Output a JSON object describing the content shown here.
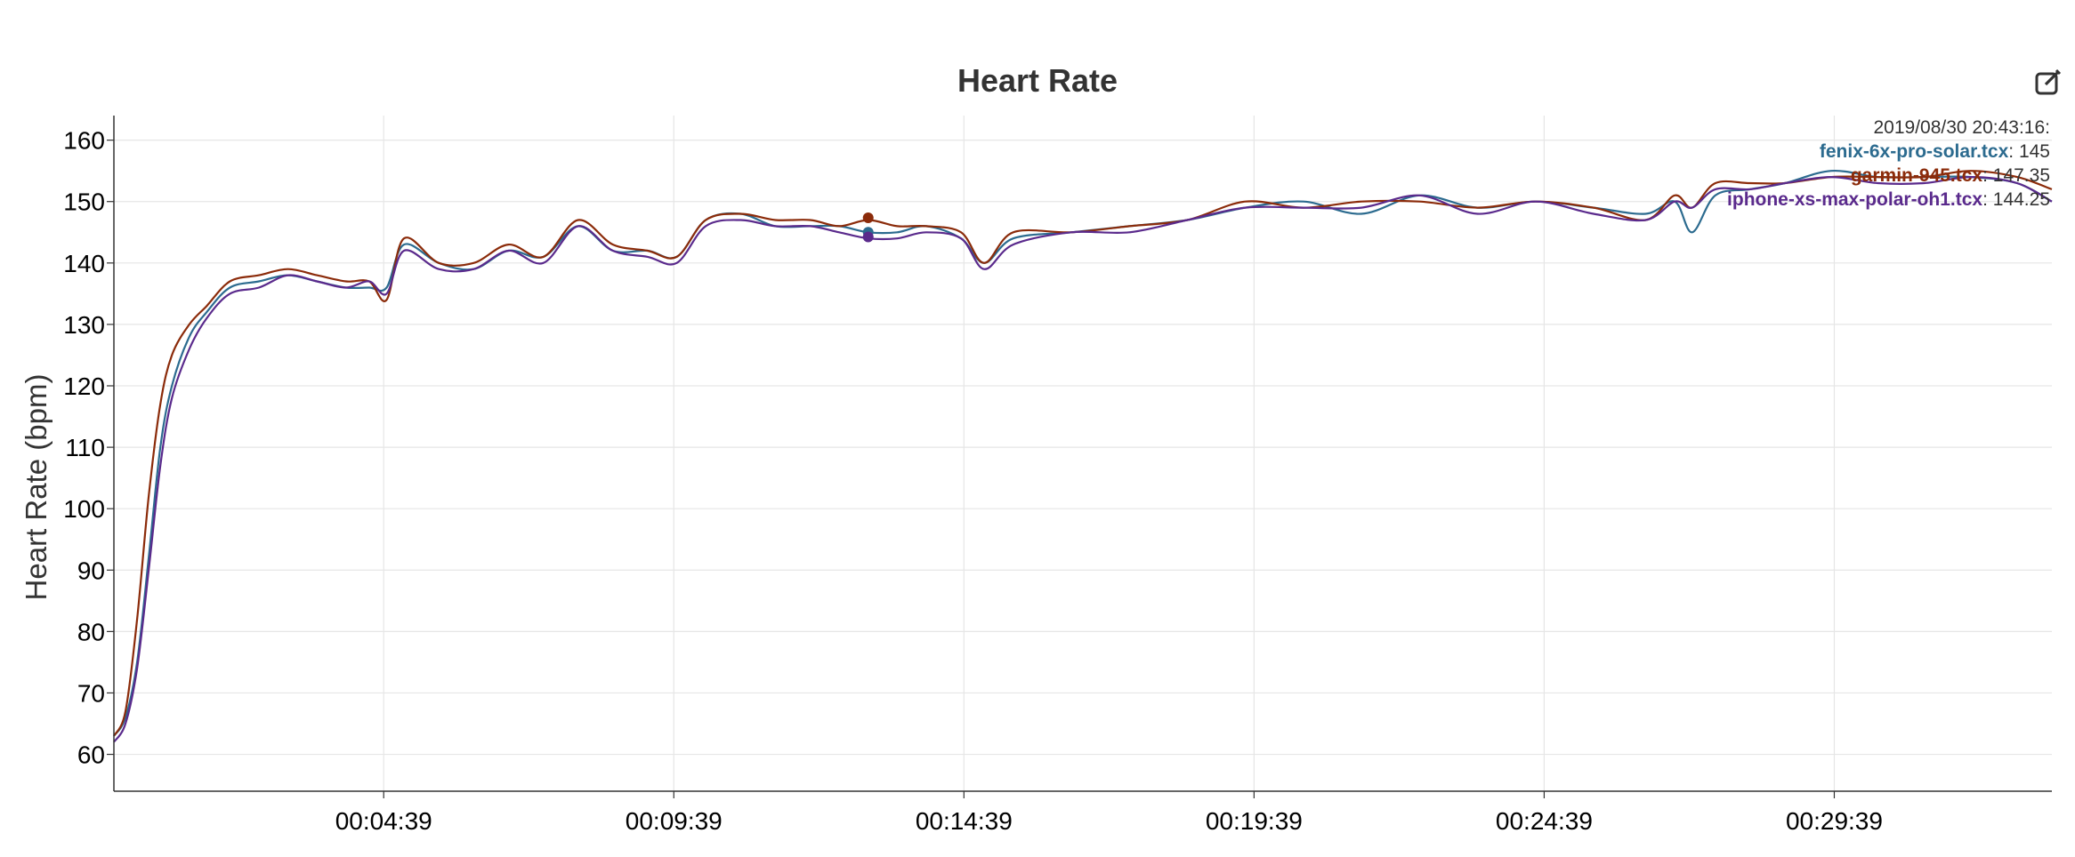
{
  "chart_data": {
    "type": "line",
    "title": "Heart Rate",
    "ylabel": "Heart Rate (bpm)",
    "xlabel": "",
    "ylim": [
      54,
      164
    ],
    "yticks": [
      60,
      70,
      80,
      90,
      100,
      110,
      120,
      130,
      140,
      150,
      160
    ],
    "xlim_minutes": [
      0,
      33.4
    ],
    "xtick_labels": [
      "00:04:39",
      "00:09:39",
      "00:14:39",
      "00:19:39",
      "00:24:39",
      "00:29:39"
    ],
    "xtick_minutes": [
      4.65,
      9.65,
      14.65,
      19.65,
      24.65,
      29.65
    ],
    "grid": true,
    "legend_placement": "top-right",
    "hover_time": "2019/08/30 20:43:16:",
    "hover_minute": 13.0,
    "series": [
      {
        "name": "fenix-6x-pro-solar.tcx",
        "color": "#2c6b8f",
        "hover_value": "145",
        "x": [
          0,
          0.2,
          0.4,
          0.6,
          0.8,
          1.0,
          1.3,
          1.6,
          2.0,
          2.5,
          3.0,
          3.5,
          4.0,
          4.4,
          4.7,
          5.0,
          5.6,
          6.2,
          6.8,
          7.4,
          8.0,
          8.6,
          9.2,
          9.7,
          10.2,
          10.8,
          11.4,
          12.0,
          12.5,
          13.0,
          13.5,
          14.0,
          14.6,
          15.0,
          15.5,
          16.5,
          17.5,
          18.5,
          19.5,
          20.5,
          21.5,
          22.5,
          23.5,
          24.5,
          25.5,
          26.4,
          26.9,
          27.2,
          27.6,
          28.2,
          28.8,
          29.6,
          30.4,
          31.2,
          32.0,
          32.8,
          33.4
        ],
        "y": [
          63,
          66,
          75,
          92,
          110,
          120,
          128,
          132,
          136,
          137,
          138,
          137,
          136,
          136,
          136,
          143,
          140,
          139,
          142,
          141,
          146,
          142,
          142,
          141,
          147,
          148,
          146,
          146,
          146,
          145,
          145,
          146,
          144,
          140,
          144,
          145,
          146,
          147,
          149,
          150,
          148,
          151,
          149,
          150,
          149,
          148,
          150,
          145,
          151,
          152,
          153,
          155,
          154,
          154,
          154,
          153,
          150
        ]
      },
      {
        "name": "garmin-945.tcx",
        "color": "#8b2b0a",
        "hover_value": "147.35",
        "x": [
          0,
          0.2,
          0.4,
          0.6,
          0.8,
          1.0,
          1.3,
          1.6,
          2.0,
          2.5,
          3.0,
          3.5,
          4.0,
          4.4,
          4.7,
          5.0,
          5.6,
          6.2,
          6.8,
          7.4,
          8.0,
          8.6,
          9.2,
          9.7,
          10.2,
          10.8,
          11.4,
          12.0,
          12.5,
          13.0,
          13.5,
          14.0,
          14.6,
          15.0,
          15.5,
          16.5,
          17.5,
          18.5,
          19.5,
          20.5,
          21.5,
          22.5,
          23.5,
          24.5,
          25.5,
          26.4,
          26.9,
          27.2,
          27.6,
          28.2,
          28.8,
          29.6,
          30.4,
          31.2,
          32.0,
          32.8,
          33.4
        ],
        "y": [
          63,
          67,
          82,
          102,
          117,
          125,
          130,
          133,
          137,
          138,
          139,
          138,
          137,
          137,
          134,
          144,
          140,
          140,
          143,
          141,
          147,
          143,
          142,
          141,
          147,
          148,
          147,
          147,
          146,
          147,
          146,
          146,
          145,
          140,
          145,
          145,
          146,
          147,
          150,
          149,
          150,
          150,
          149,
          150,
          149,
          147,
          151,
          149,
          153,
          153,
          153,
          154,
          154,
          154,
          155,
          154,
          152
        ]
      },
      {
        "name": "iphone-xs-max-polar-oh1.tcx",
        "color": "#5a2a8c",
        "hover_value": "144.25",
        "x": [
          0,
          0.2,
          0.4,
          0.6,
          0.8,
          1.0,
          1.3,
          1.6,
          2.0,
          2.5,
          3.0,
          3.5,
          4.0,
          4.4,
          4.7,
          5.0,
          5.6,
          6.2,
          6.8,
          7.4,
          8.0,
          8.6,
          9.2,
          9.7,
          10.2,
          10.8,
          11.4,
          12.0,
          12.5,
          13.0,
          13.5,
          14.0,
          14.6,
          15.0,
          15.5,
          16.5,
          17.5,
          18.5,
          19.5,
          20.5,
          21.5,
          22.5,
          23.5,
          24.5,
          25.5,
          26.4,
          26.9,
          27.2,
          27.6,
          28.2,
          28.8,
          29.6,
          30.4,
          31.2,
          32.0,
          32.8,
          33.4
        ],
        "y": [
          62,
          65,
          74,
          90,
          107,
          118,
          126,
          131,
          135,
          136,
          138,
          137,
          136,
          137,
          135,
          142,
          139,
          139,
          142,
          140,
          146,
          142,
          141,
          140,
          146,
          147,
          146,
          146,
          145,
          144,
          144,
          145,
          144,
          139,
          143,
          145,
          145,
          147,
          149,
          149,
          149,
          151,
          148,
          150,
          148,
          147,
          150,
          149,
          152,
          152,
          153,
          154,
          153,
          153,
          154,
          153,
          150
        ]
      }
    ]
  },
  "toolbar": {
    "edit_icon": "edit-external-icon"
  }
}
